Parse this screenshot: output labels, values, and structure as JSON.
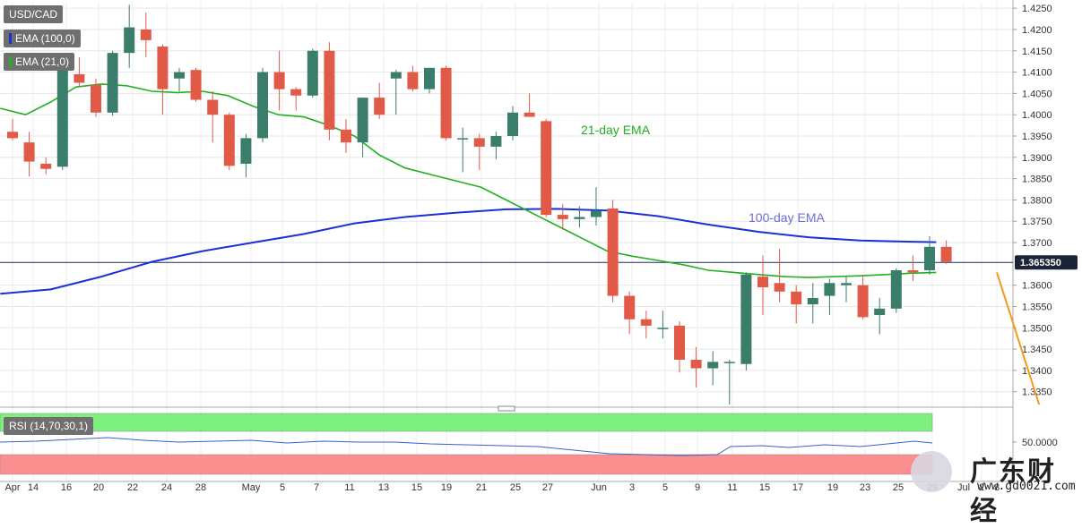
{
  "legend": {
    "symbol": "USD/CAD",
    "ema100_label": "EMA (100,0)",
    "ema21_label": "EMA (21,0)",
    "rsi_label": "RSI (14,70,30,1)"
  },
  "annotations": {
    "ema21": "21-day EMA",
    "ema100": "100-day EMA"
  },
  "price_tag": "1.365350",
  "rsi_tick": "50.0000",
  "watermark": {
    "title": "广东财经",
    "url": "www.gd0021.com"
  },
  "colors": {
    "up": "#3a7d6a",
    "down": "#e05a47",
    "ema100": "#1c2fd6",
    "ema21": "#22b022",
    "trendline": "#f29b1a",
    "rsi_line": "#3a5fcd",
    "rsi_upper": "#7ef07e",
    "rsi_lower": "#fb8f8f"
  },
  "chart_data": {
    "type": "candlestick",
    "title": "USD/CAD",
    "y_ticks": [
      "1.4250",
      "1.4200",
      "1.4150",
      "1.4100",
      "1.4050",
      "1.4000",
      "1.3950",
      "1.3900",
      "1.3850",
      "1.3800",
      "1.3750",
      "1.3700",
      "1.3600",
      "1.3550",
      "1.3500",
      "1.3450",
      "1.3400",
      "1.3350"
    ],
    "ylim": [
      1.332,
      1.4265
    ],
    "x_tick_labels": [
      "Apr",
      "14",
      "16",
      "20",
      "22",
      "24",
      "28",
      "May",
      "5",
      "7",
      "11",
      "13",
      "15",
      "19",
      "21",
      "25",
      "27",
      "Jun",
      "3",
      "5",
      "9",
      "11",
      "15",
      "17",
      "19",
      "23",
      "25",
      "29",
      "Jul",
      "2",
      "3"
    ],
    "last_price": 1.36535,
    "candles": [
      {
        "o": 1.396,
        "h": 1.399,
        "l": 1.394,
        "c": 1.3945
      },
      {
        "o": 1.3935,
        "h": 1.396,
        "l": 1.3855,
        "c": 1.389
      },
      {
        "o": 1.3885,
        "h": 1.39,
        "l": 1.386,
        "c": 1.3873
      },
      {
        "o": 1.3878,
        "h": 1.411,
        "l": 1.387,
        "c": 1.4105
      },
      {
        "o": 1.4095,
        "h": 1.4135,
        "l": 1.4065,
        "c": 1.4075
      },
      {
        "o": 1.407,
        "h": 1.4085,
        "l": 1.3995,
        "c": 1.4005
      },
      {
        "o": 1.4005,
        "h": 1.415,
        "l": 1.3998,
        "c": 1.4145
      },
      {
        "o": 1.4145,
        "h": 1.4258,
        "l": 1.411,
        "c": 1.4205
      },
      {
        "o": 1.42,
        "h": 1.424,
        "l": 1.4135,
        "c": 1.4175
      },
      {
        "o": 1.416,
        "h": 1.4165,
        "l": 1.4,
        "c": 1.406
      },
      {
        "o": 1.4085,
        "h": 1.411,
        "l": 1.4055,
        "c": 1.41
      },
      {
        "o": 1.4105,
        "h": 1.411,
        "l": 1.403,
        "c": 1.4035
      },
      {
        "o": 1.4035,
        "h": 1.4055,
        "l": 1.3935,
        "c": 1.4
      },
      {
        "o": 1.4,
        "h": 1.4005,
        "l": 1.387,
        "c": 1.388
      },
      {
        "o": 1.3885,
        "h": 1.3955,
        "l": 1.3853,
        "c": 1.3945
      },
      {
        "o": 1.3945,
        "h": 1.411,
        "l": 1.3935,
        "c": 1.41
      },
      {
        "o": 1.41,
        "h": 1.415,
        "l": 1.401,
        "c": 1.406
      },
      {
        "o": 1.406,
        "h": 1.4065,
        "l": 1.401,
        "c": 1.4045
      },
      {
        "o": 1.4045,
        "h": 1.4155,
        "l": 1.404,
        "c": 1.415
      },
      {
        "o": 1.415,
        "h": 1.417,
        "l": 1.394,
        "c": 1.3965
      },
      {
        "o": 1.3965,
        "h": 1.399,
        "l": 1.391,
        "c": 1.3935
      },
      {
        "o": 1.3935,
        "h": 1.404,
        "l": 1.39,
        "c": 1.404
      },
      {
        "o": 1.404,
        "h": 1.4075,
        "l": 1.399,
        "c": 1.4
      },
      {
        "o": 1.4085,
        "h": 1.4105,
        "l": 1.4,
        "c": 1.41
      },
      {
        "o": 1.41,
        "h": 1.4115,
        "l": 1.4055,
        "c": 1.406
      },
      {
        "o": 1.406,
        "h": 1.411,
        "l": 1.405,
        "c": 1.411
      },
      {
        "o": 1.411,
        "h": 1.4115,
        "l": 1.394,
        "c": 1.3945
      },
      {
        "o": 1.3942,
        "h": 1.397,
        "l": 1.3865,
        "c": 1.3945
      },
      {
        "o": 1.3945,
        "h": 1.3955,
        "l": 1.387,
        "c": 1.3925
      },
      {
        "o": 1.3925,
        "h": 1.396,
        "l": 1.3895,
        "c": 1.395
      },
      {
        "o": 1.395,
        "h": 1.402,
        "l": 1.394,
        "c": 1.4005
      },
      {
        "o": 1.4005,
        "h": 1.405,
        "l": 1.3995,
        "c": 1.3995
      },
      {
        "o": 1.3985,
        "h": 1.399,
        "l": 1.376,
        "c": 1.3765
      },
      {
        "o": 1.3765,
        "h": 1.379,
        "l": 1.373,
        "c": 1.3755
      },
      {
        "o": 1.3755,
        "h": 1.3785,
        "l": 1.3735,
        "c": 1.376
      },
      {
        "o": 1.376,
        "h": 1.383,
        "l": 1.374,
        "c": 1.3775
      },
      {
        "o": 1.378,
        "h": 1.38,
        "l": 1.356,
        "c": 1.3575
      },
      {
        "o": 1.3575,
        "h": 1.3585,
        "l": 1.3485,
        "c": 1.352
      },
      {
        "o": 1.352,
        "h": 1.354,
        "l": 1.3475,
        "c": 1.3505
      },
      {
        "o": 1.35,
        "h": 1.354,
        "l": 1.3475,
        "c": 1.35
      },
      {
        "o": 1.3505,
        "h": 1.3515,
        "l": 1.3395,
        "c": 1.3425
      },
      {
        "o": 1.3425,
        "h": 1.3455,
        "l": 1.336,
        "c": 1.3405
      },
      {
        "o": 1.3405,
        "h": 1.3445,
        "l": 1.3365,
        "c": 1.342
      },
      {
        "o": 1.342,
        "h": 1.3425,
        "l": 1.332,
        "c": 1.342
      },
      {
        "o": 1.3415,
        "h": 1.363,
        "l": 1.34,
        "c": 1.3625
      },
      {
        "o": 1.362,
        "h": 1.367,
        "l": 1.353,
        "c": 1.3595
      },
      {
        "o": 1.3605,
        "h": 1.3685,
        "l": 1.356,
        "c": 1.3585
      },
      {
        "o": 1.3585,
        "h": 1.36,
        "l": 1.351,
        "c": 1.3555
      },
      {
        "o": 1.3555,
        "h": 1.3605,
        "l": 1.351,
        "c": 1.357
      },
      {
        "o": 1.3575,
        "h": 1.3615,
        "l": 1.353,
        "c": 1.3605
      },
      {
        "o": 1.36,
        "h": 1.362,
        "l": 1.356,
        "c": 1.3605
      },
      {
        "o": 1.36,
        "h": 1.3625,
        "l": 1.352,
        "c": 1.3525
      },
      {
        "o": 1.353,
        "h": 1.357,
        "l": 1.3485,
        "c": 1.3545
      },
      {
        "o": 1.3545,
        "h": 1.364,
        "l": 1.3535,
        "c": 1.3635
      },
      {
        "o": 1.3635,
        "h": 1.367,
        "l": 1.361,
        "c": 1.363
      },
      {
        "o": 1.3635,
        "h": 1.3715,
        "l": 1.3625,
        "c": 1.369
      },
      {
        "o": 1.369,
        "h": 1.3705,
        "l": 1.365,
        "c": 1.3655
      }
    ],
    "ema100": [
      [
        0,
        1.358
      ],
      [
        6,
        1.359
      ],
      [
        12,
        1.362
      ],
      [
        18,
        1.3655
      ],
      [
        24,
        1.368
      ],
      [
        30,
        1.37
      ],
      [
        36,
        1.372
      ],
      [
        42,
        1.3745
      ],
      [
        48,
        1.376
      ],
      [
        54,
        1.377
      ],
      [
        60,
        1.3778
      ],
      [
        66,
        1.3779
      ],
      [
        72,
        1.3775
      ],
      [
        78,
        1.3762
      ],
      [
        84,
        1.3742
      ],
      [
        90,
        1.3725
      ],
      [
        96,
        1.3712
      ],
      [
        102,
        1.3705
      ],
      [
        108,
        1.3702
      ],
      [
        111,
        1.3701
      ]
    ],
    "ema21": [
      [
        0,
        1.4015
      ],
      [
        3,
        1.4
      ],
      [
        6,
        1.403
      ],
      [
        9,
        1.4065
      ],
      [
        12,
        1.4072
      ],
      [
        15,
        1.4068
      ],
      [
        18,
        1.4055
      ],
      [
        21,
        1.4052
      ],
      [
        24,
        1.4055
      ],
      [
        27,
        1.4045
      ],
      [
        30,
        1.402
      ],
      [
        33,
        1.4
      ],
      [
        36,
        1.3995
      ],
      [
        39,
        1.3975
      ],
      [
        42,
        1.395
      ],
      [
        45,
        1.3905
      ],
      [
        48,
        1.3875
      ],
      [
        51,
        1.386
      ],
      [
        54,
        1.3845
      ],
      [
        57,
        1.383
      ],
      [
        60,
        1.38
      ],
      [
        63,
        1.377
      ],
      [
        66,
        1.374
      ],
      [
        69,
        1.371
      ],
      [
        72,
        1.368
      ],
      [
        75,
        1.3668
      ],
      [
        78,
        1.3658
      ],
      [
        81,
        1.3648
      ],
      [
        84,
        1.3635
      ],
      [
        87,
        1.363
      ],
      [
        90,
        1.3625
      ],
      [
        93,
        1.362
      ],
      [
        96,
        1.3618
      ],
      [
        99,
        1.362
      ],
      [
        102,
        1.3622
      ],
      [
        105,
        1.3625
      ],
      [
        108,
        1.3628
      ],
      [
        111,
        1.363
      ]
    ],
    "trendline": [
      [
        86,
        1.332
      ],
      [
        119,
        1.363
      ]
    ]
  }
}
